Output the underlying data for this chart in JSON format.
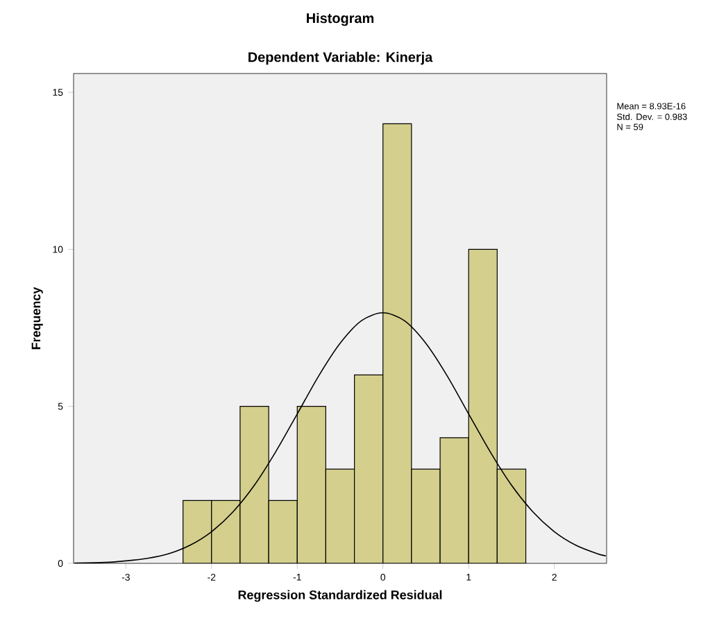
{
  "chart_data": {
    "type": "histogram",
    "title": "Histogram",
    "subtitle": "Dependent Variable: Kinerja",
    "xlabel": "Regression Standardized Residual",
    "ylabel": "Frequency",
    "bins": [
      -2.333,
      -2.0,
      -1.667,
      -1.333,
      -1.0,
      -0.667,
      -0.333,
      0.0,
      0.333,
      0.667,
      1.0,
      1.333,
      1.667
    ],
    "values": [
      2,
      2,
      5,
      2,
      5,
      3,
      6,
      14,
      3,
      4,
      10,
      3
    ],
    "color": "#d4cf8c",
    "series": [
      {
        "type": "line",
        "color": "#000000",
        "x": [
          -3.6,
          -3.25,
          -3.0,
          -2.75,
          -2.5,
          -2.25,
          -2.0,
          -1.75,
          -1.5,
          -1.25,
          -1.0,
          -0.75,
          -0.5,
          -0.25,
          0.0,
          0.25,
          0.5,
          0.75,
          1.0,
          1.25,
          1.5,
          1.75,
          2.0,
          2.25,
          2.5,
          2.6
        ],
        "values": [
          0.01,
          0.03,
          0.08,
          0.16,
          0.31,
          0.58,
          1.01,
          1.64,
          2.49,
          3.56,
          4.76,
          5.97,
          7.01,
          7.73,
          7.98,
          7.73,
          7.01,
          5.97,
          4.76,
          3.56,
          2.49,
          1.64,
          1.01,
          0.58,
          0.31,
          0.24
        ]
      }
    ],
    "xlim": [
      -3.61,
      2.61
    ],
    "ylim": [
      0,
      15.6
    ],
    "xticks": [
      -3,
      -2,
      -1,
      0,
      1,
      2
    ],
    "yticks": [
      0,
      5,
      10,
      15
    ],
    "annotations": [
      "Mean = 8.93E-16",
      "Std. Dev. = 0.983",
      "N = 59"
    ],
    "grid": false
  }
}
